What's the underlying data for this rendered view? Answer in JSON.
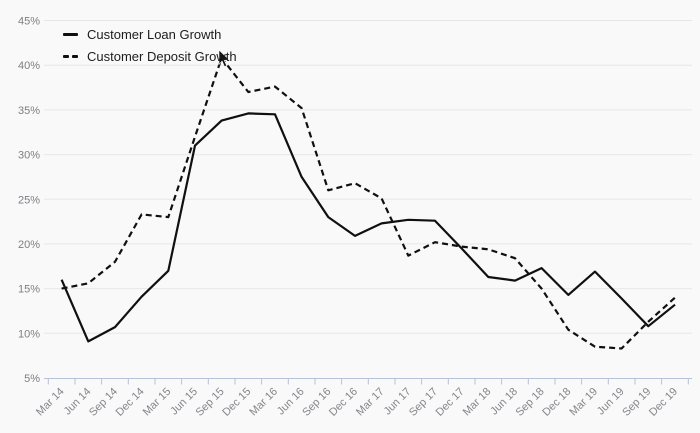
{
  "chart_data": {
    "type": "line",
    "x_labels": [
      "Mar 14",
      "Jun 14",
      "Sep 14",
      "Dec 14",
      "Mar 15",
      "Jun 15",
      "Sep 15",
      "Dec 15",
      "Mar 16",
      "Jun 16",
      "Sep 16",
      "Dec 16",
      "Mar 17",
      "Jun 17",
      "Sep 17",
      "Dec 17",
      "Mar 18",
      "Jun 18",
      "Sep 18",
      "Dec 18",
      "Mar 19",
      "Jun 19",
      "Sep 19",
      "Dec 19"
    ],
    "series": [
      {
        "id": "loan-growth",
        "name": "Customer Loan Growth",
        "style": "solid",
        "color": "#101010",
        "values": [
          16.0,
          9.1,
          10.7,
          14.1,
          17.0,
          31.0,
          33.8,
          34.6,
          34.5,
          27.5,
          23.0,
          20.9,
          22.3,
          22.7,
          22.6,
          19.5,
          16.3,
          15.9,
          17.3,
          14.3,
          16.9,
          13.9,
          10.8,
          13.2
        ]
      },
      {
        "id": "deposit-growth",
        "name": "Customer Deposit Growth",
        "style": "dashed",
        "dash": "6 4",
        "color": "#101010",
        "values": [
          15.0,
          15.6,
          18.0,
          23.3,
          23.0,
          32.0,
          40.8,
          37.0,
          37.6,
          35.2,
          26.0,
          26.8,
          25.1,
          18.7,
          20.2,
          19.7,
          19.4,
          18.4,
          15.0,
          10.4,
          8.5,
          8.3,
          11.3,
          14.0
        ]
      }
    ],
    "ylim": [
      5,
      45
    ],
    "y_ticks": [
      {
        "value": 5,
        "label": "5%"
      },
      {
        "value": 10,
        "label": "10%"
      },
      {
        "value": 15,
        "label": "15%"
      },
      {
        "value": 20,
        "label": "20%"
      },
      {
        "value": 25,
        "label": "25%"
      },
      {
        "value": 30,
        "label": "30%"
      },
      {
        "value": 35,
        "label": "35%"
      },
      {
        "value": 40,
        "label": "40%"
      },
      {
        "value": 45,
        "label": "45%"
      }
    ],
    "grid": "horizontal",
    "legend_position": "top-left",
    "colors": {
      "background": "#f9f9fa",
      "grid": "#e7e7e9",
      "axis": "#b7c2d8",
      "y_label": "#7e7e82",
      "x_label": "#86868b"
    },
    "cursor": {
      "x": 219,
      "y": 50
    }
  }
}
